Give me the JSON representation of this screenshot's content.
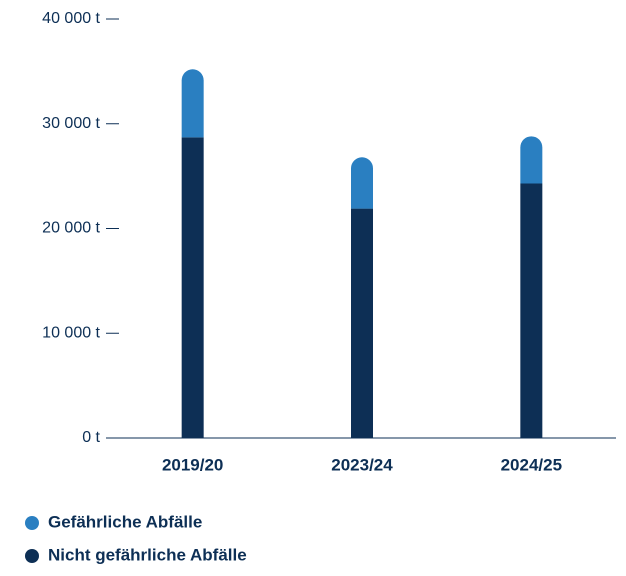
{
  "chart_data": {
    "type": "stacked_bar",
    "categories": [
      "2019/20",
      "2023/24",
      "2024/25"
    ],
    "series": [
      {
        "name": "Gefährliche Abfälle",
        "color": "#2a7fc1",
        "values": [
          6500,
          4900,
          4500
        ]
      },
      {
        "name": "Nicht gefährliche Abfälle",
        "color": "#0d2f55",
        "values": [
          28700,
          21900,
          24300
        ]
      }
    ],
    "ylim": [
      0,
      40000
    ],
    "yticks": [
      {
        "value": 0,
        "label": "0 t"
      },
      {
        "value": 10000,
        "label": "10 000 t"
      },
      {
        "value": 20000,
        "label": "20 000 t"
      },
      {
        "value": 30000,
        "label": "30 000 t"
      },
      {
        "value": 40000,
        "label": "40 000 t"
      }
    ],
    "legend": "bottom-left"
  }
}
